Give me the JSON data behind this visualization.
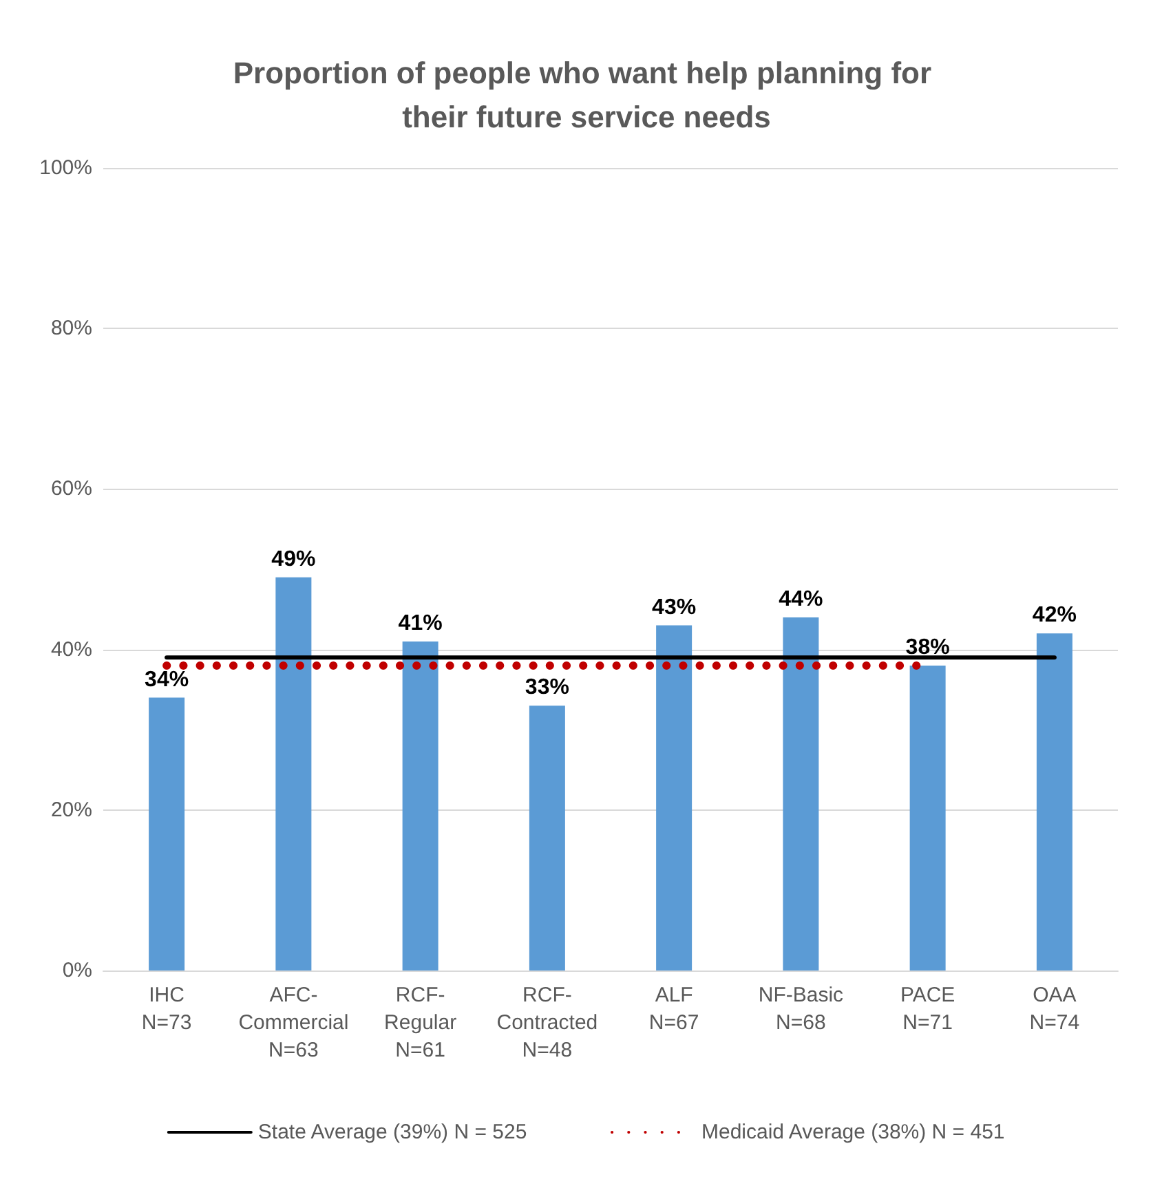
{
  "chart_data": {
    "type": "bar",
    "title": "Proportion of people who want help planning for their future service needs",
    "categories": [
      "IHC\nN=73",
      "AFC-\nCommercial\nN=63",
      "RCF-\nRegular\nN=61",
      "RCF-\nContracted\nN=48",
      "ALF\nN=67",
      "NF-Basic\nN=68",
      "PACE\nN=71",
      "OAA\nN=74"
    ],
    "series": [
      {
        "color": "#5b9bd5",
        "values": [
          34,
          49,
          41,
          33,
          43,
          44,
          38,
          42
        ],
        "value_labels": [
          "34%",
          "49%",
          "41%",
          "33%",
          "43%",
          "44%",
          "38%",
          "42%"
        ]
      },
      {
        "type": "line",
        "name": "State Average (39%) N = 525",
        "color": "#000000",
        "values": [
          39,
          39,
          39,
          39,
          39,
          39,
          39,
          39
        ],
        "marker": "none",
        "line_style": "solid"
      },
      {
        "type": "line",
        "name": "Medicaid Average (38%) N = 451",
        "color": "#c00000",
        "values": [
          38,
          38,
          38,
          38,
          38,
          38,
          38,
          null
        ],
        "marker": "none",
        "line_style": "dotted"
      }
    ],
    "ylim": [
      0,
      100
    ],
    "yticks": [
      {
        "value": 0,
        "label": "0%"
      },
      {
        "value": 20,
        "label": "20%"
      },
      {
        "value": 40,
        "label": "40%"
      },
      {
        "value": 60,
        "label": "60%"
      },
      {
        "value": 80,
        "label": "80%"
      },
      {
        "value": 100,
        "label": "100%"
      }
    ],
    "grid": "y",
    "legend": "bottom"
  }
}
